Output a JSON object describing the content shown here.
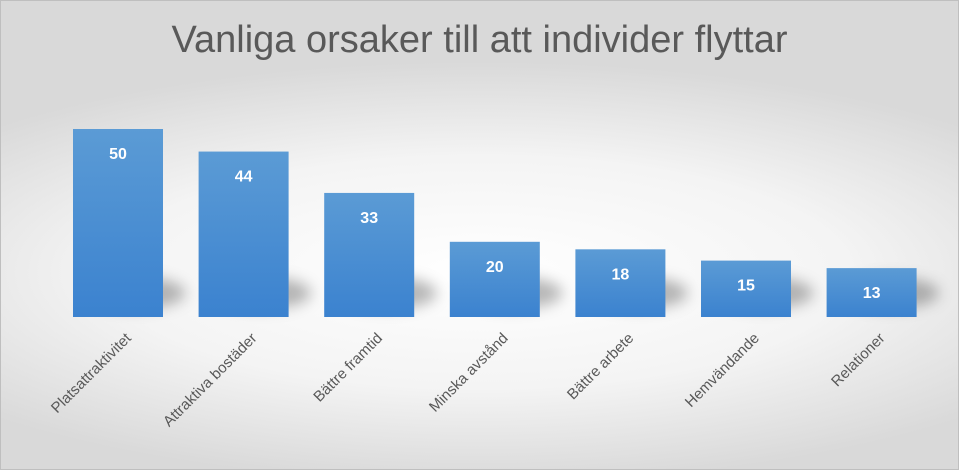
{
  "chart_data": {
    "type": "bar",
    "title": "Vanliga orsaker till att individer flyttar",
    "xlabel": "",
    "ylabel": "",
    "categories": [
      "Platsattraktivitet",
      "Attraktiva bostäder",
      "Bättre framtid",
      "Minska avstånd",
      "Bättre arbete",
      "Hemvändande",
      "Relationer"
    ],
    "values": [
      50,
      44,
      33,
      20,
      18,
      15,
      13
    ],
    "ylim": [
      0,
      50
    ],
    "grid": false,
    "legend": "none",
    "data_labels": "inside-top",
    "colors": {
      "bar_top": "#5b9bd5",
      "bar_bottom": "#3b82cf"
    }
  }
}
